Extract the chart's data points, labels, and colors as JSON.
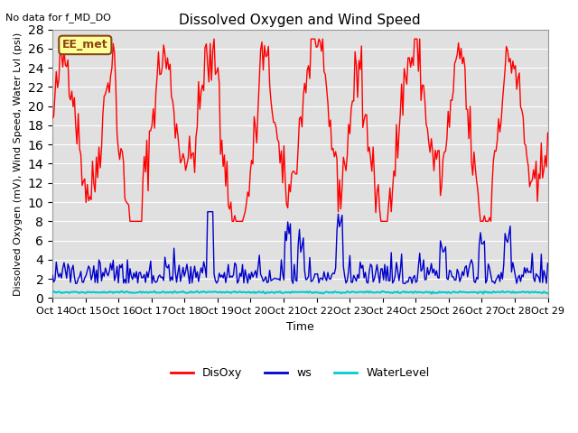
{
  "title": "Dissolved Oxygen and Wind Speed",
  "subtitle": "No data for f_MD_DO",
  "xlabel": "Time",
  "ylabel": "Dissolved Oxygen (mV), Wind Speed, Water Lvl (psi)",
  "annotation": "EE_met",
  "xtick_labels": [
    "Oct 14",
    "Oct 15",
    "Oct 16",
    "Oct 17",
    "Oct 18",
    "Oct 19",
    "Oct 20",
    "Oct 21",
    "Oct 22",
    "Oct 23",
    "Oct 24",
    "Oct 25",
    "Oct 26",
    "Oct 27",
    "Oct 28",
    "Oct 29"
  ],
  "ylim": [
    0,
    28
  ],
  "yticks": [
    0,
    2,
    4,
    6,
    8,
    10,
    12,
    14,
    16,
    18,
    20,
    22,
    24,
    26,
    28
  ],
  "disoxy_color": "#FF0000",
  "ws_color": "#0000CC",
  "waterlevel_color": "#00CCCC",
  "bg_color": "#E0E0E0",
  "legend_labels": [
    "DisOxy",
    "ws",
    "WaterLevel"
  ],
  "seed": 42
}
